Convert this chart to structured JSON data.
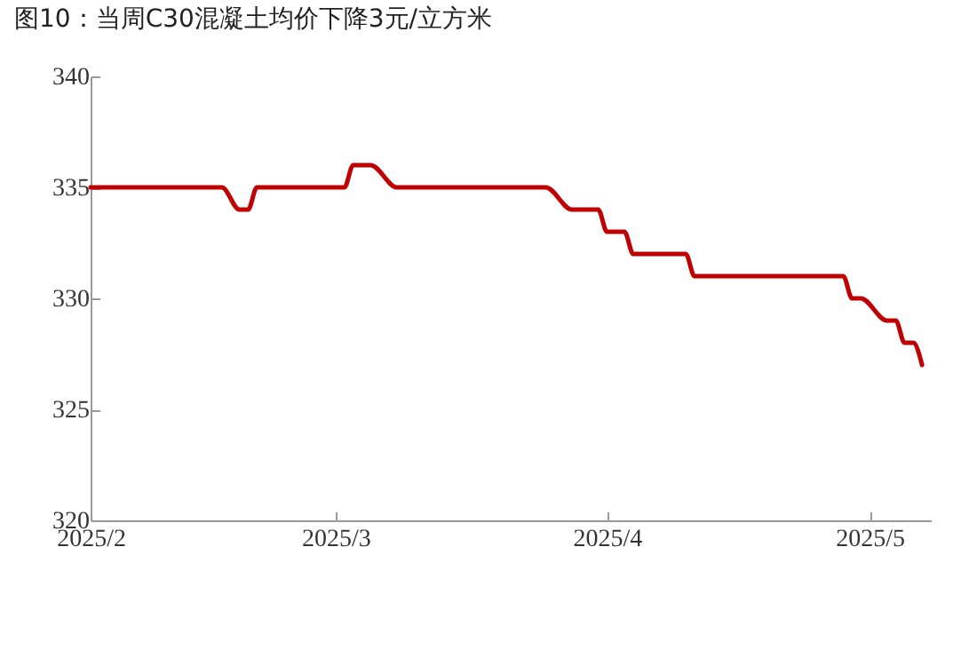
{
  "chart_data": {
    "type": "line",
    "title": "图10：当周C30混凝土均价下降3元/立方米",
    "x": [
      "2025-02-01",
      "2025-02-16",
      "2025-02-18",
      "2025-02-19",
      "2025-02-20",
      "2025-03-02",
      "2025-03-03",
      "2025-03-05",
      "2025-03-08",
      "2025-03-25",
      "2025-03-28",
      "2025-03-31",
      "2025-04-01",
      "2025-04-03",
      "2025-04-04",
      "2025-04-10",
      "2025-04-11",
      "2025-04-28",
      "2025-04-29",
      "2025-04-30",
      "2025-05-03",
      "2025-05-04",
      "2025-05-05",
      "2025-05-06",
      "2025-05-07"
    ],
    "series": [
      {
        "color": "#c00000",
        "values": [
          335,
          335,
          334,
          334,
          335,
          335,
          336,
          336,
          335,
          335,
          334,
          334,
          333,
          333,
          332,
          332,
          331,
          331,
          330,
          330,
          329,
          329,
          328,
          328,
          327
        ]
      }
    ],
    "xlim": [
      "2025-02-01",
      "2025-05-08"
    ],
    "xticks": [
      {
        "value": "2025-02-01",
        "label": "2025/2"
      },
      {
        "value": "2025-03-01",
        "label": "2025/3"
      },
      {
        "value": "2025-04-01",
        "label": "2025/4"
      },
      {
        "value": "2025-05-01",
        "label": "2025/5"
      }
    ],
    "ylim": [
      320,
      340
    ],
    "yticks": [
      320,
      325,
      330,
      335,
      340
    ],
    "grid": false,
    "marker": "none",
    "line_style": "solid"
  }
}
